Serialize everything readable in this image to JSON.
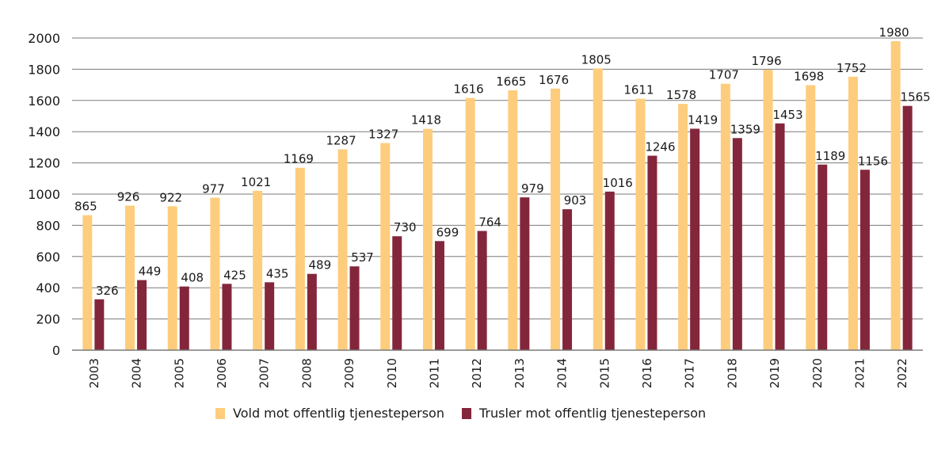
{
  "chart_data": {
    "type": "bar",
    "categories": [
      "2003",
      "2004",
      "2005",
      "2006",
      "2007",
      "2008",
      "2009",
      "2010",
      "2011",
      "2012",
      "2013",
      "2014",
      "2015",
      "2016",
      "2017",
      "2018",
      "2019",
      "2020",
      "2021",
      "2022"
    ],
    "series": [
      {
        "name": "Vold mot offentlig tjenesteperson",
        "color": "#fdcd7d",
        "values": [
          865,
          926,
          922,
          977,
          1021,
          1169,
          1287,
          1327,
          1418,
          1616,
          1665,
          1676,
          1805,
          1611,
          1578,
          1707,
          1796,
          1698,
          1752,
          1980
        ]
      },
      {
        "name": "Trusler mot offentlig tjenesteperson",
        "color": "#84263b",
        "values": [
          326,
          449,
          408,
          425,
          435,
          489,
          537,
          730,
          699,
          764,
          979,
          903,
          1016,
          1246,
          1419,
          1359,
          1453,
          1189,
          1156,
          1565
        ]
      }
    ],
    "ylim": [
      0,
      2000
    ],
    "yticks": [
      0,
      200,
      400,
      600,
      800,
      1000,
      1200,
      1400,
      1600,
      1800,
      2000
    ],
    "grid": true,
    "legend": "bottom",
    "data_labels": true
  }
}
